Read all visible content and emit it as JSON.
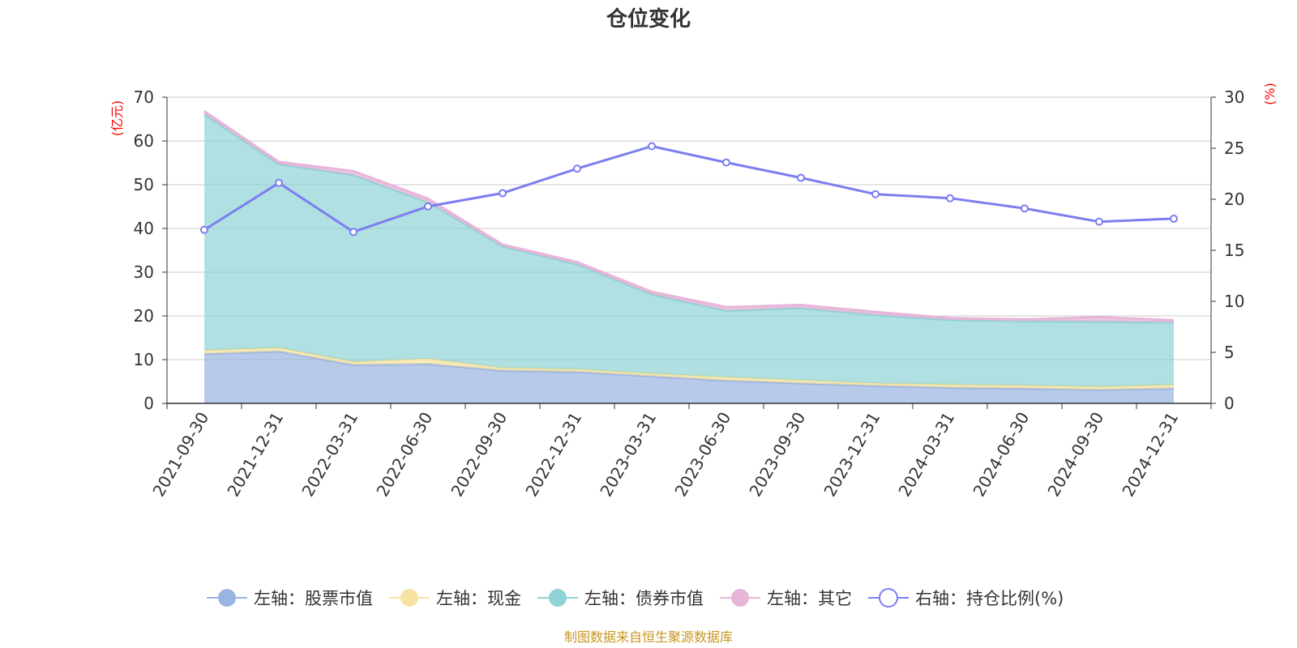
{
  "chart_data": {
    "type": "area",
    "title": "仓位变化",
    "left_axis_unit": "(亿元)",
    "right_axis_unit": "(%)",
    "categories": [
      "2021-09-30",
      "2021-12-31",
      "2022-03-31",
      "2022-06-30",
      "2022-09-30",
      "2022-12-31",
      "2023-03-31",
      "2023-06-30",
      "2023-09-30",
      "2023-12-31",
      "2024-03-31",
      "2024-06-30",
      "2024-09-30",
      "2024-12-31"
    ],
    "left_ylim": [
      0,
      70
    ],
    "left_ticks": [
      0,
      10,
      20,
      30,
      40,
      50,
      60,
      70
    ],
    "right_ylim": [
      0,
      30
    ],
    "right_ticks": [
      0,
      5,
      10,
      15,
      20,
      25,
      30
    ],
    "grid": true,
    "legend_position": "bottom",
    "stacked_series": [
      {
        "name": "左轴：股票市值",
        "color": "#9ab4e1",
        "values": [
          11.3,
          11.9,
          8.8,
          9.0,
          7.5,
          7.2,
          6.2,
          5.2,
          4.6,
          4.0,
          3.6,
          3.4,
          3.1,
          3.4
        ]
      },
      {
        "name": "左轴：现金",
        "color": "#f7e3a1",
        "values": [
          0.8,
          0.8,
          0.7,
          1.2,
          0.6,
          0.6,
          0.6,
          0.8,
          0.7,
          0.6,
          0.7,
          0.7,
          0.7,
          0.8
        ]
      },
      {
        "name": "左轴：债券市值",
        "color": "#8fd3d4",
        "values": [
          54.0,
          42.0,
          42.7,
          35.8,
          27.8,
          24.0,
          18.1,
          15.2,
          16.5,
          15.6,
          14.8,
          14.7,
          14.9,
          14.3
        ]
      },
      {
        "name": "左轴：其它",
        "color": "#e8b4d8",
        "values": [
          0.7,
          0.5,
          0.9,
          0.8,
          0.4,
          0.5,
          0.6,
          0.8,
          0.7,
          0.7,
          0.4,
          0.4,
          1.0,
          0.5
        ]
      }
    ],
    "line_series": {
      "name": "右轴：持仓比例(%)",
      "color": "#7b7ef0",
      "values": [
        17.0,
        21.6,
        16.8,
        19.3,
        20.6,
        23.0,
        25.2,
        23.6,
        22.1,
        20.5,
        20.1,
        19.1,
        17.8,
        18.1
      ]
    },
    "source_note": "制图数据来自恒生聚源数据库"
  }
}
